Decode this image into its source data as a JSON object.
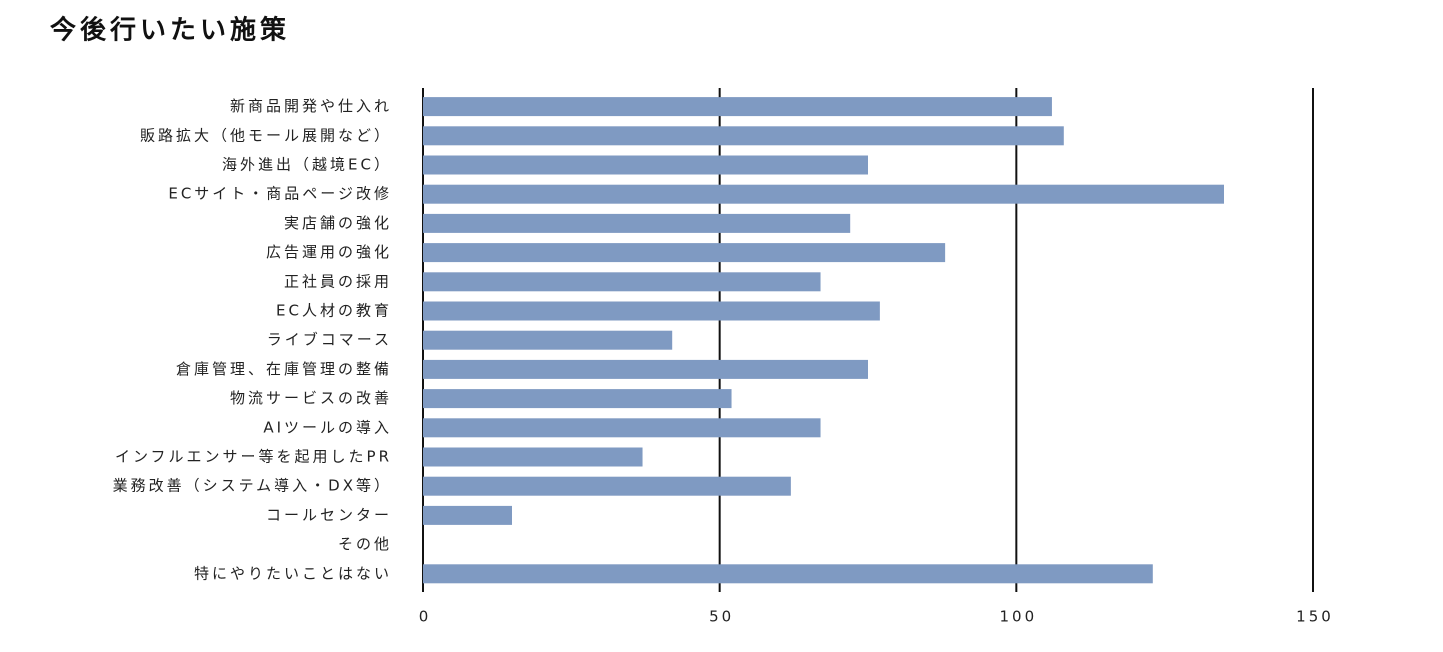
{
  "chart_data": {
    "type": "bar",
    "orientation": "horizontal",
    "title": "今後行いたい施策",
    "categories": [
      "新商品開発や仕入れ",
      "販路拡大（他モール展開など）",
      "海外進出（越境EC）",
      "ECサイト・商品ページ改修",
      "実店舗の強化",
      "広告運用の強化",
      "正社員の採用",
      "EC人材の教育",
      "ライブコマース",
      "倉庫管理、在庫管理の整備",
      "物流サービスの改善",
      "AIツールの導入",
      "インフルエンサー等を起用したPR",
      "業務改善（システム導入・DX等）",
      "コールセンター",
      "その他",
      "特にやりたいことはない"
    ],
    "values": [
      106,
      108,
      75,
      135,
      72,
      88,
      67,
      77,
      42,
      75,
      52,
      67,
      37,
      62,
      15,
      0,
      123
    ],
    "color": "#7f9ac2",
    "xlim": [
      0,
      150
    ],
    "xticks": [
      0,
      50,
      100,
      150
    ],
    "grid": true
  }
}
